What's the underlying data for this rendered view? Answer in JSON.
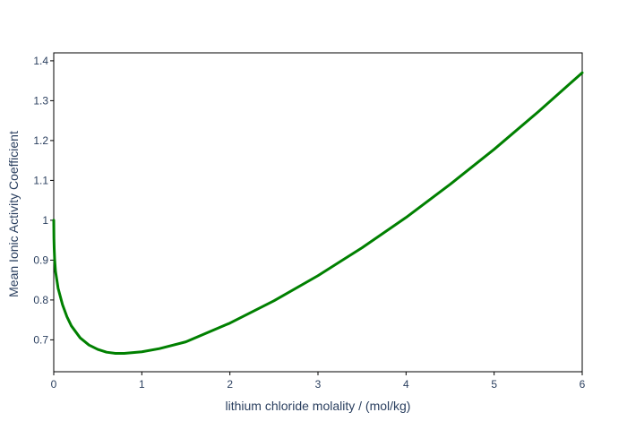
{
  "chart_data": {
    "type": "line",
    "title": "",
    "xlabel": "lithium chloride molality / (mol/kg)",
    "ylabel": "Mean Ionic Activity Coefficient",
    "xlim": [
      0,
      6
    ],
    "ylim": [
      0.62,
      1.42
    ],
    "x_ticks": [
      0,
      1,
      2,
      3,
      4,
      5,
      6
    ],
    "x_tick_labels": [
      "0",
      "1",
      "2",
      "3",
      "4",
      "5",
      "6"
    ],
    "y_ticks": [
      0.7,
      0.8,
      0.9,
      1.0,
      1.1,
      1.2,
      1.3,
      1.4
    ],
    "y_tick_labels": [
      "0.7",
      "0.8",
      "0.9",
      "1",
      "1.1",
      "1.2",
      "1.3",
      "1.4"
    ],
    "grid": false,
    "series": [
      {
        "color": "#008000",
        "x": [
          0,
          0.002,
          0.005,
          0.01,
          0.02,
          0.05,
          0.1,
          0.15,
          0.2,
          0.3,
          0.4,
          0.5,
          0.6,
          0.7,
          0.8,
          1.0,
          1.2,
          1.5,
          2.0,
          2.5,
          3.0,
          3.5,
          4.0,
          4.5,
          5.0,
          5.5,
          6.0
        ],
        "y": [
          1.0,
          0.955,
          0.93,
          0.903,
          0.872,
          0.829,
          0.788,
          0.758,
          0.735,
          0.705,
          0.687,
          0.676,
          0.669,
          0.666,
          0.666,
          0.67,
          0.678,
          0.695,
          0.742,
          0.798,
          0.861,
          0.931,
          1.007,
          1.09,
          1.178,
          1.272,
          1.37
        ]
      }
    ]
  }
}
